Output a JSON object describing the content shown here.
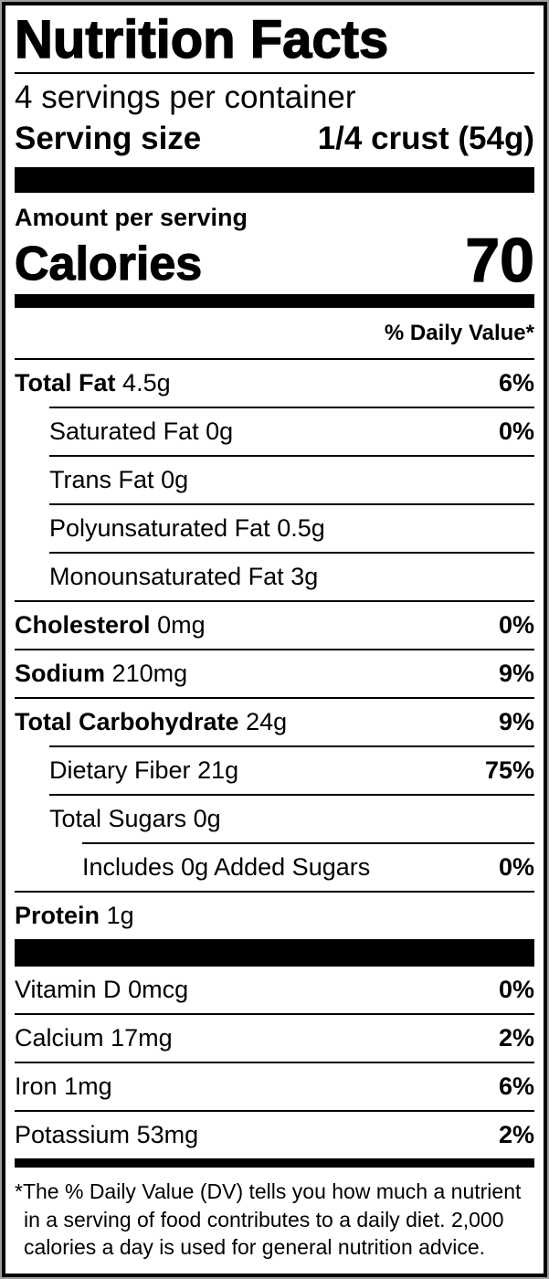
{
  "label": {
    "title": "Nutrition Facts",
    "servings_per_container": "4 servings per container",
    "serving_size": {
      "label": "Serving size",
      "value": "1/4 crust (54g)"
    },
    "amount_per_serving": "Amount per serving",
    "calories": {
      "label": "Calories",
      "value": "70"
    },
    "daily_value_header": "% Daily Value*",
    "nutrients": [
      {
        "name": "Total Fat",
        "amount": "4.5g",
        "dv": "6%"
      },
      {
        "name": "Saturated Fat",
        "amount": "0g",
        "dv": "0%"
      },
      {
        "name": "Trans Fat",
        "amount": "0g",
        "dv": ""
      },
      {
        "name": "Polyunsaturated Fat",
        "amount": "0.5g",
        "dv": ""
      },
      {
        "name": "Monounsaturated Fat",
        "amount": "3g",
        "dv": ""
      },
      {
        "name": "Cholesterol",
        "amount": "0mg",
        "dv": "0%"
      },
      {
        "name": "Sodium",
        "amount": "210mg",
        "dv": "9%"
      },
      {
        "name": "Total Carbohydrate",
        "amount": "24g",
        "dv": "9%"
      },
      {
        "name": "Dietary Fiber",
        "amount": "21g",
        "dv": "75%"
      },
      {
        "name": "Total Sugars",
        "amount": "0g",
        "dv": ""
      },
      {
        "name": "Includes 0g Added Sugars",
        "amount": "",
        "dv": "0%"
      },
      {
        "name": "Protein",
        "amount": "1g",
        "dv": ""
      }
    ],
    "vitamins": [
      {
        "name": "Vitamin D",
        "amount": "0mcg",
        "dv": "0%"
      },
      {
        "name": "Calcium",
        "amount": "17mg",
        "dv": "2%"
      },
      {
        "name": "Iron",
        "amount": "1mg",
        "dv": "6%"
      },
      {
        "name": "Potassium",
        "amount": "53mg",
        "dv": "2%"
      }
    ],
    "footnote": "*The % Daily Value (DV) tells you how much a nutrient in a serving of food contributes to a daily diet. 2,000 calories a day is used for general nutrition advice."
  },
  "colors": {
    "text": "#000000",
    "background": "#ffffff",
    "rule": "#000000"
  }
}
